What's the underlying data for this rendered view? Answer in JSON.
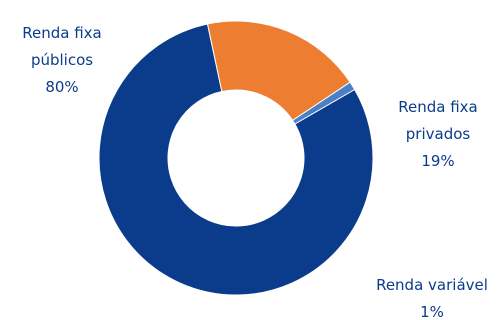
{
  "chart_data": {
    "type": "pie",
    "categories": [
      "Renda fixa públicos",
      "Renda fixa privados",
      "Renda variável"
    ],
    "values": [
      80,
      19,
      1
    ],
    "value_labels": [
      "80%",
      "19%",
      "1%"
    ],
    "slice_labels": [
      [
        "Renda fixa",
        "públicos",
        "80%"
      ],
      [
        "Renda fixa",
        "privados",
        "19%"
      ],
      [
        "Renda variável",
        "1%"
      ]
    ],
    "colors": [
      "#0b3c8c",
      "#ec7d31",
      "#4a80c8"
    ],
    "label_color": "#0b3c8c",
    "legend": "none"
  }
}
